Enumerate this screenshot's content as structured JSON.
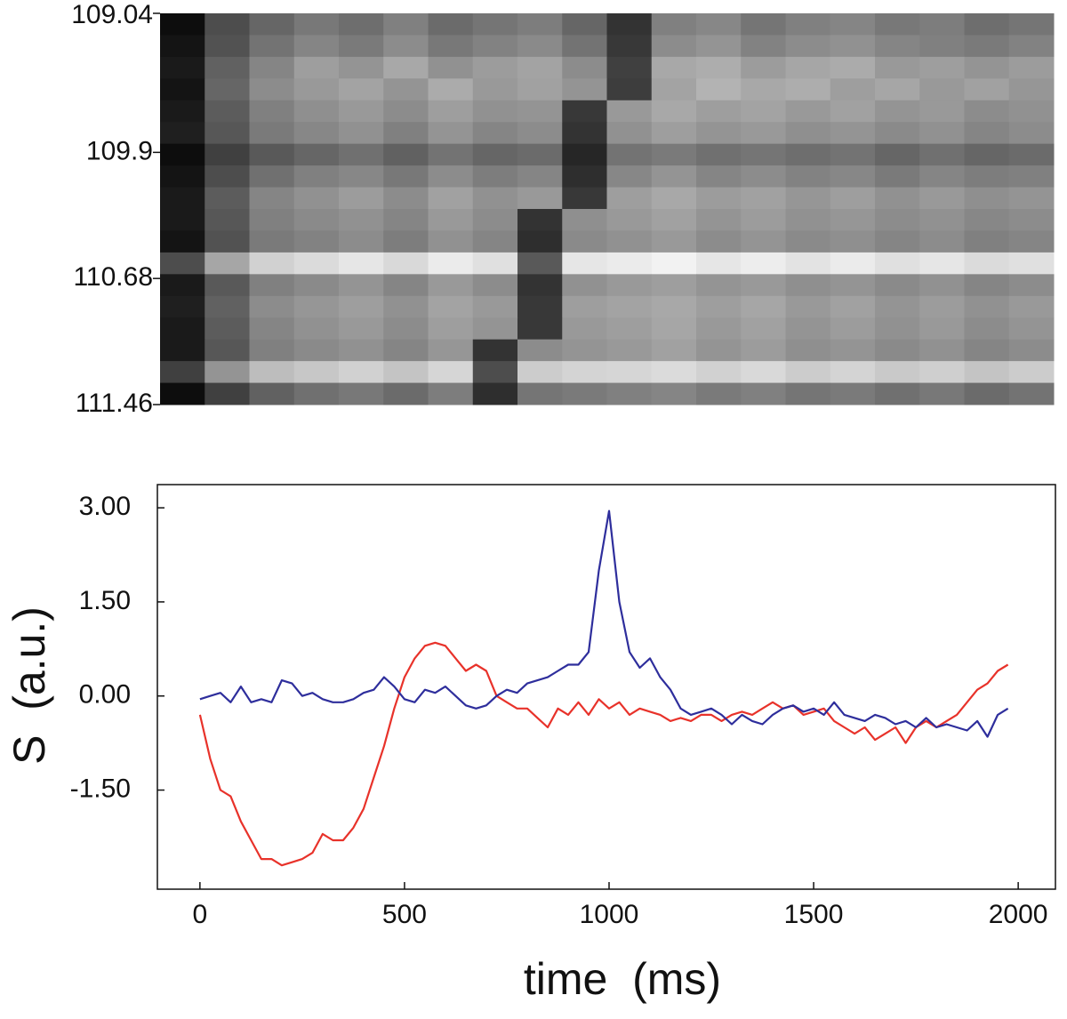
{
  "chart_data": [
    {
      "type": "heatmap",
      "ylim": [
        109.04,
        111.46
      ],
      "yticks": [
        109.04,
        109.9,
        110.68,
        111.46
      ],
      "colormap": "gray",
      "zlim": [
        0,
        100
      ],
      "z": [
        [
          5,
          30,
          40,
          47,
          43,
          50,
          42,
          46,
          49,
          40,
          20,
          50,
          53,
          46,
          50,
          52,
          47,
          49,
          43,
          46
        ],
        [
          8,
          32,
          45,
          52,
          48,
          55,
          47,
          51,
          54,
          45,
          22,
          55,
          58,
          51,
          55,
          57,
          52,
          50,
          48,
          51
        ],
        [
          10,
          38,
          52,
          62,
          58,
          66,
          57,
          61,
          64,
          55,
          25,
          66,
          68,
          61,
          65,
          67,
          60,
          62,
          58,
          61
        ],
        [
          8,
          40,
          55,
          60,
          64,
          58,
          67,
          60,
          63,
          58,
          24,
          64,
          70,
          66,
          68,
          62,
          65,
          60,
          63,
          59
        ],
        [
          10,
          36,
          50,
          56,
          60,
          55,
          62,
          57,
          58,
          22,
          60,
          66,
          62,
          64,
          60,
          63,
          58,
          60,
          55,
          57
        ],
        [
          12,
          34,
          48,
          53,
          57,
          50,
          58,
          52,
          55,
          20,
          57,
          62,
          58,
          60,
          56,
          58,
          54,
          57,
          52,
          55
        ],
        [
          5,
          25,
          35,
          40,
          44,
          38,
          45,
          40,
          42,
          15,
          45,
          48,
          44,
          46,
          43,
          45,
          40,
          44,
          40,
          42
        ],
        [
          8,
          30,
          44,
          50,
          53,
          47,
          55,
          49,
          52,
          18,
          53,
          58,
          52,
          55,
          51,
          53,
          48,
          52,
          49,
          50
        ],
        [
          10,
          36,
          52,
          57,
          61,
          55,
          63,
          57,
          60,
          22,
          62,
          66,
          61,
          63,
          59,
          62,
          57,
          60,
          56,
          58
        ],
        [
          10,
          34,
          50,
          54,
          57,
          52,
          60,
          55,
          20,
          56,
          60,
          63,
          58,
          61,
          57,
          59,
          55,
          57,
          53,
          55
        ],
        [
          8,
          32,
          48,
          51,
          55,
          49,
          57,
          52,
          18,
          54,
          57,
          60,
          55,
          58,
          54,
          56,
          52,
          55,
          50,
          52
        ],
        [
          30,
          65,
          82,
          86,
          90,
          85,
          92,
          88,
          35,
          90,
          92,
          95,
          90,
          93,
          89,
          92,
          88,
          90,
          86,
          88
        ],
        [
          10,
          35,
          50,
          54,
          58,
          52,
          60,
          55,
          20,
          57,
          60,
          62,
          58,
          60,
          56,
          58,
          54,
          57,
          52,
          55
        ],
        [
          12,
          38,
          55,
          59,
          62,
          57,
          64,
          60,
          22,
          62,
          64,
          66,
          62,
          65,
          60,
          63,
          58,
          61,
          57,
          60
        ],
        [
          10,
          36,
          52,
          57,
          60,
          55,
          62,
          58,
          22,
          60,
          62,
          65,
          60,
          63,
          58,
          61,
          57,
          60,
          55,
          58
        ],
        [
          10,
          34,
          50,
          54,
          57,
          52,
          59,
          20,
          55,
          58,
          60,
          63,
          58,
          61,
          56,
          58,
          54,
          57,
          52,
          55
        ],
        [
          25,
          58,
          74,
          78,
          82,
          77,
          84,
          30,
          80,
          83,
          84,
          86,
          82,
          85,
          80,
          83,
          79,
          81,
          77,
          80
        ],
        [
          5,
          25,
          38,
          44,
          47,
          42,
          49,
          18,
          46,
          48,
          50,
          52,
          48,
          50,
          46,
          48,
          44,
          47,
          42,
          45
        ]
      ]
    },
    {
      "type": "line",
      "xlabel": "time  (ms)",
      "ylabel": "S  (a.u.)",
      "xlim": [
        -104,
        2091
      ],
      "ylim": [
        -3.08,
        3.37
      ],
      "xticks": [
        0,
        500,
        1000,
        1500,
        2000
      ],
      "yticks": [
        {
          "value": 3,
          "label": "3.00"
        },
        {
          "value": 1.5,
          "label": "1.50"
        },
        {
          "value": 0,
          "label": "0.00"
        },
        {
          "value": -1.5,
          "label": "-1.50"
        }
      ],
      "x": [
        0,
        25,
        50,
        75,
        100,
        125,
        150,
        175,
        200,
        225,
        250,
        275,
        300,
        325,
        350,
        375,
        400,
        425,
        450,
        475,
        500,
        525,
        550,
        575,
        600,
        625,
        650,
        675,
        700,
        725,
        750,
        775,
        800,
        825,
        850,
        875,
        900,
        925,
        950,
        975,
        1000,
        1025,
        1050,
        1075,
        1100,
        1125,
        1150,
        1175,
        1200,
        1225,
        1250,
        1275,
        1300,
        1325,
        1350,
        1375,
        1400,
        1425,
        1450,
        1475,
        1500,
        1525,
        1550,
        1575,
        1600,
        1625,
        1650,
        1675,
        1700,
        1725,
        1750,
        1775,
        1800,
        1825,
        1850,
        1875,
        1900,
        1925,
        1950,
        1975
      ],
      "series": [
        {
          "color": "#e8322a",
          "values": [
            -0.3,
            -1.0,
            -1.5,
            -1.6,
            -2.0,
            -2.3,
            -2.6,
            -2.6,
            -2.7,
            -2.65,
            -2.6,
            -2.5,
            -2.2,
            -2.3,
            -2.3,
            -2.1,
            -1.8,
            -1.3,
            -0.8,
            -0.2,
            0.3,
            0.6,
            0.8,
            0.85,
            0.8,
            0.6,
            0.4,
            0.5,
            0.4,
            0.0,
            -0.1,
            -0.2,
            -0.2,
            -0.35,
            -0.5,
            -0.2,
            -0.3,
            -0.1,
            -0.3,
            -0.05,
            -0.2,
            -0.1,
            -0.3,
            -0.2,
            -0.25,
            -0.3,
            -0.4,
            -0.35,
            -0.4,
            -0.3,
            -0.3,
            -0.4,
            -0.3,
            -0.25,
            -0.3,
            -0.2,
            -0.1,
            -0.2,
            -0.15,
            -0.3,
            -0.25,
            -0.2,
            -0.4,
            -0.5,
            -0.6,
            -0.5,
            -0.7,
            -0.6,
            -0.5,
            -0.75,
            -0.5,
            -0.4,
            -0.5,
            -0.4,
            -0.3,
            -0.1,
            0.1,
            0.2,
            0.4,
            0.5
          ]
        },
        {
          "color": "#2e2e9c",
          "values": [
            -0.05,
            0.0,
            0.05,
            -0.1,
            0.15,
            -0.1,
            -0.05,
            -0.1,
            0.25,
            0.2,
            0.0,
            0.05,
            -0.05,
            -0.1,
            -0.1,
            -0.05,
            0.05,
            0.1,
            0.3,
            0.15,
            -0.05,
            -0.1,
            0.1,
            0.05,
            0.15,
            0.0,
            -0.15,
            -0.2,
            -0.15,
            0.0,
            0.1,
            0.05,
            0.2,
            0.25,
            0.3,
            0.4,
            0.5,
            0.5,
            0.7,
            2.0,
            2.95,
            1.5,
            0.7,
            0.45,
            0.6,
            0.3,
            0.1,
            -0.2,
            -0.3,
            -0.25,
            -0.2,
            -0.3,
            -0.45,
            -0.3,
            -0.4,
            -0.45,
            -0.3,
            -0.2,
            -0.15,
            -0.25,
            -0.2,
            -0.3,
            -0.1,
            -0.3,
            -0.35,
            -0.4,
            -0.3,
            -0.35,
            -0.45,
            -0.4,
            -0.5,
            -0.35,
            -0.5,
            -0.45,
            -0.5,
            -0.55,
            -0.4,
            -0.65,
            -0.3,
            -0.2
          ]
        }
      ]
    }
  ]
}
